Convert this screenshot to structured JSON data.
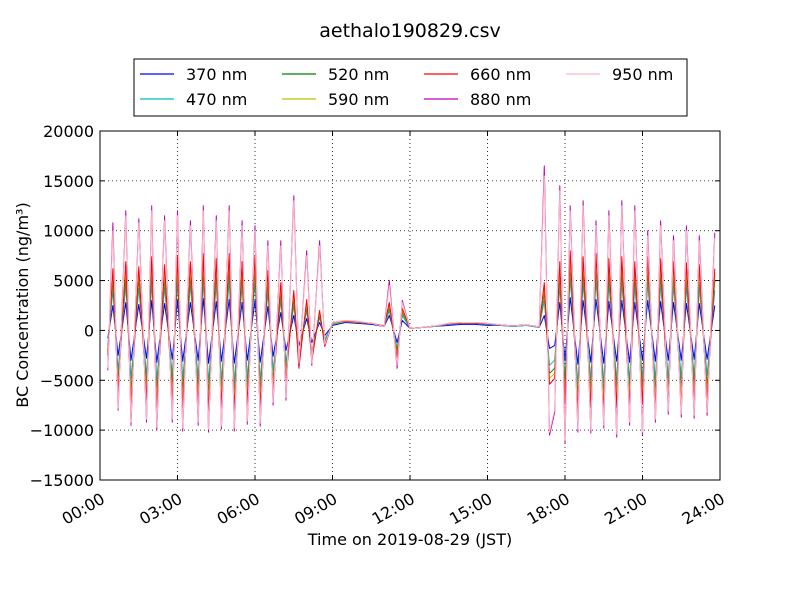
{
  "chart_data": {
    "type": "line",
    "title": "aethalo190829.csv",
    "xlabel": "Time on 2019-08-29 (JST)",
    "ylabel": "BC Concentration (ng/m³)",
    "xlim": [
      0,
      24
    ],
    "ylim": [
      -15000,
      20000
    ],
    "x_ticks": [
      "00:00",
      "03:00",
      "06:00",
      "09:00",
      "12:00",
      "15:00",
      "18:00",
      "21:00",
      "24:00"
    ],
    "y_ticks": [
      "20000",
      "15000",
      "10000",
      "5000",
      "0",
      "−5000",
      "−10000",
      "−15000"
    ],
    "grid": true,
    "legend_position": "top",
    "x": [
      0.3,
      0.5,
      0.7,
      1.0,
      1.2,
      1.5,
      1.8,
      2.0,
      2.2,
      2.5,
      2.8,
      3.0,
      3.2,
      3.5,
      3.8,
      4.0,
      4.2,
      4.5,
      4.7,
      5.0,
      5.2,
      5.5,
      5.7,
      6.0,
      6.2,
      6.5,
      6.7,
      7.0,
      7.2,
      7.5,
      7.7,
      8.0,
      8.2,
      8.5,
      8.7,
      9.0,
      9.5,
      10.0,
      10.5,
      11.0,
      11.2,
      11.5,
      11.7,
      12.0,
      12.5,
      13.0,
      13.5,
      14.0,
      14.5,
      15.0,
      15.5,
      16.0,
      16.5,
      17.0,
      17.2,
      17.4,
      17.6,
      17.8,
      18.0,
      18.2,
      18.5,
      18.7,
      19.0,
      19.2,
      19.5,
      19.7,
      20.0,
      20.2,
      20.5,
      20.7,
      21.0,
      21.2,
      21.5,
      21.7,
      22.0,
      22.2,
      22.5,
      22.7,
      23.0,
      23.2,
      23.5,
      23.8
    ],
    "series": [
      {
        "name": "370 nm",
        "color": "#0000ff",
        "values": [
          -800,
          2500,
          -2500,
          2800,
          -3000,
          2600,
          -2800,
          3000,
          -3200,
          2700,
          -2900,
          3000,
          -3100,
          2800,
          -3000,
          3200,
          -3300,
          2900,
          -3100,
          3100,
          -3300,
          2800,
          -3000,
          3000,
          -3200,
          2400,
          -2600,
          1800,
          -2000,
          1500,
          -1500,
          1200,
          -1200,
          800,
          -500,
          500,
          800,
          700,
          600,
          400,
          1500,
          -1200,
          1000,
          200,
          300,
          400,
          500,
          600,
          600,
          500,
          500,
          400,
          500,
          300,
          1500,
          -1800,
          -1500,
          2800,
          -3000,
          3300,
          -3400,
          3000,
          -3200,
          3100,
          -3300,
          2900,
          -3100,
          3000,
          -3200,
          2800,
          -3000,
          3000,
          -3100,
          2900,
          -3000,
          2800,
          -3000,
          2700,
          -2900,
          2700,
          -2900,
          2500
        ]
      },
      {
        "name": "470 nm",
        "color": "#00bfbf",
        "values": [
          -1500,
          4000,
          -4000,
          4500,
          -4800,
          4200,
          -4500,
          4800,
          -5000,
          4300,
          -4600,
          4800,
          -5000,
          4500,
          -4800,
          5000,
          -5200,
          4700,
          -5000,
          5000,
          -5200,
          4500,
          -4800,
          4800,
          -5000,
          3800,
          -4000,
          3000,
          -3200,
          2500,
          -2400,
          2000,
          -2000,
          1300,
          -900,
          600,
          900,
          800,
          700,
          400,
          2000,
          -1800,
          1500,
          200,
          300,
          400,
          600,
          700,
          700,
          600,
          500,
          400,
          500,
          300,
          3000,
          -3500,
          -3000,
          4500,
          -4800,
          5200,
          -5300,
          4800,
          -5000,
          5000,
          -5200,
          4700,
          -5000,
          4800,
          -5000,
          4500,
          -4800,
          4800,
          -5000,
          4700,
          -4800,
          4500,
          -4800,
          4400,
          -4600,
          4300,
          -4500,
          4000
        ]
      },
      {
        "name": "520 nm",
        "color": "#008000",
        "values": [
          -2000,
          5000,
          -5000,
          5500,
          -6000,
          5200,
          -5600,
          6000,
          -6200,
          5300,
          -5700,
          6000,
          -6200,
          5500,
          -6000,
          6200,
          -6500,
          5800,
          -6200,
          6200,
          -6500,
          5600,
          -6000,
          6000,
          -6200,
          4800,
          -5000,
          3800,
          -4000,
          3200,
          -3000,
          2500,
          -2500,
          1600,
          -1200,
          700,
          900,
          800,
          700,
          450,
          2300,
          -2100,
          1800,
          200,
          300,
          450,
          650,
          750,
          750,
          650,
          550,
          450,
          550,
          350,
          3800,
          -4300,
          -3800,
          5600,
          -6000,
          6500,
          -6600,
          6000,
          -6200,
          6200,
          -6500,
          5800,
          -6200,
          6000,
          -6200,
          5600,
          -6000,
          6000,
          -6200,
          5800,
          -6000,
          5600,
          -6000,
          5500,
          -5700,
          5300,
          -5600,
          5000
        ]
      },
      {
        "name": "590 nm",
        "color": "#bfbf00",
        "values": [
          -2200,
          5600,
          -5600,
          6200,
          -6700,
          5800,
          -6300,
          6700,
          -6900,
          5900,
          -6400,
          6700,
          -6900,
          6200,
          -6700,
          6900,
          -7200,
          6500,
          -6900,
          6900,
          -7200,
          6200,
          -6700,
          6700,
          -6900,
          5400,
          -5600,
          4300,
          -4500,
          3600,
          -3400,
          2800,
          -2800,
          1800,
          -1400,
          700,
          900,
          800,
          700,
          450,
          2500,
          -2400,
          2000,
          200,
          300,
          450,
          650,
          750,
          750,
          650,
          550,
          450,
          550,
          350,
          4300,
          -4800,
          -4300,
          6200,
          -6700,
          7200,
          -7300,
          6700,
          -6900,
          6900,
          -7200,
          6500,
          -6900,
          6700,
          -6900,
          6200,
          -6700,
          6700,
          -6900,
          6500,
          -6700,
          6200,
          -6700,
          6100,
          -6400,
          5900,
          -6200,
          5600
        ]
      },
      {
        "name": "660 nm",
        "color": "#ff0000",
        "values": [
          -2500,
          6200,
          -6200,
          6900,
          -7400,
          6400,
          -7000,
          7400,
          -7700,
          6600,
          -7100,
          7400,
          -7700,
          6900,
          -7400,
          7700,
          -8000,
          7200,
          -7700,
          7700,
          -8000,
          6900,
          -7400,
          7400,
          -7700,
          6000,
          -6200,
          4800,
          -5000,
          4000,
          -3800,
          3100,
          -3100,
          2000,
          -1600,
          800,
          950,
          850,
          700,
          450,
          2800,
          -2700,
          2200,
          200,
          300,
          450,
          650,
          750,
          750,
          650,
          550,
          450,
          550,
          350,
          4800,
          -5400,
          -4800,
          6900,
          -7400,
          8000,
          -8100,
          7400,
          -7700,
          7700,
          -8000,
          7200,
          -7700,
          7400,
          -7700,
          6900,
          -7400,
          7400,
          -7700,
          7200,
          -7400,
          6900,
          -7400,
          6800,
          -7100,
          6600,
          -6900,
          6200
        ]
      },
      {
        "name": "880 nm",
        "color": "#bf00bf",
        "values": [
          -4000,
          10800,
          -8000,
          12000,
          -9500,
          11200,
          -9200,
          12500,
          -10000,
          11500,
          -9200,
          12000,
          -10100,
          11000,
          -9500,
          12500,
          -10200,
          11500,
          -9900,
          12500,
          -10100,
          11000,
          -9400,
          10500,
          -9600,
          9000,
          -7500,
          9000,
          -7000,
          13500,
          -3500,
          8000,
          -3500,
          9000,
          -1500,
          800,
          1000,
          900,
          700,
          400,
          5000,
          -3800,
          3000,
          200,
          300,
          450,
          700,
          800,
          800,
          700,
          550,
          450,
          550,
          350,
          16500,
          -10500,
          -8200,
          14500,
          -11300,
          12500,
          -10200,
          13000,
          -10300,
          11000,
          -9800,
          12000,
          -10700,
          13000,
          -9500,
          12500,
          -10500,
          10000,
          -9200,
          11000,
          -8400,
          9500,
          -8700,
          10500,
          -8800,
          9500,
          -8500,
          9800
        ]
      },
      {
        "name": "950 nm",
        "color": "#ffb6c1",
        "values": [
          -3800,
          10000,
          -7800,
          11500,
          -9200,
          10800,
          -8900,
          12000,
          -9700,
          11000,
          -8900,
          11500,
          -9800,
          10500,
          -9200,
          12000,
          -9900,
          11000,
          -9600,
          12000,
          -9800,
          10500,
          -9100,
          10000,
          -9300,
          8500,
          -7200,
          8500,
          -6700,
          13000,
          -3300,
          7500,
          -3300,
          8500,
          -1400,
          800,
          1000,
          900,
          700,
          400,
          4500,
          -3500,
          2800,
          200,
          300,
          450,
          700,
          800,
          800,
          700,
          550,
          450,
          550,
          350,
          15500,
          -10200,
          -7900,
          14000,
          -11000,
          12000,
          -9900,
          12500,
          -10000,
          10500,
          -9500,
          11500,
          -10400,
          12500,
          -9200,
          12000,
          -10200,
          9500,
          -8900,
          10500,
          -8100,
          9000,
          -8400,
          10000,
          -8500,
          9000,
          -8200,
          9300
        ]
      }
    ]
  }
}
